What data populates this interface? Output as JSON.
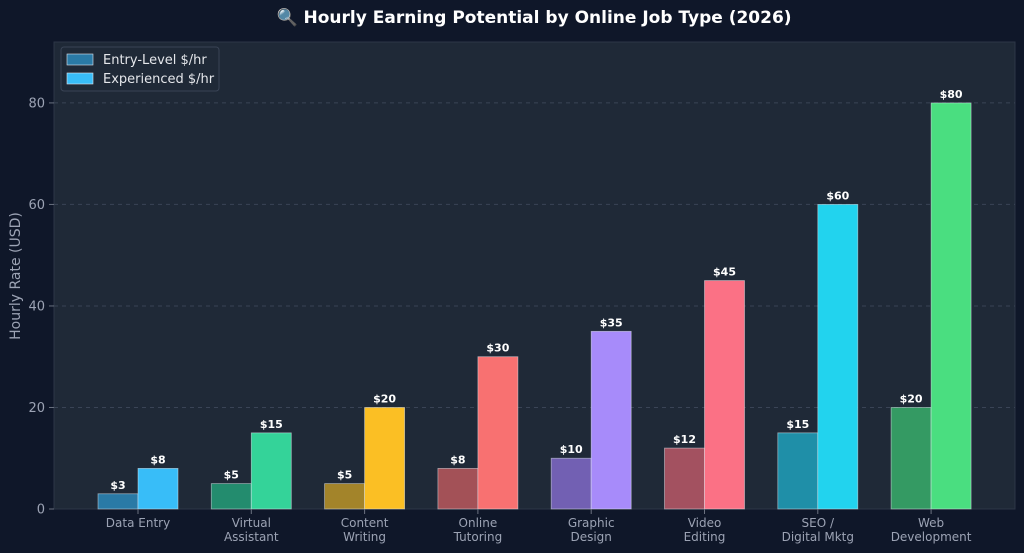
{
  "chart_data": {
    "type": "bar",
    "title": "🔍 Hourly Earning Potential by Online Job Type (2026)",
    "ylabel": "Hourly Rate (USD)",
    "xlabel": "",
    "ylim": [
      0,
      92
    ],
    "yticks": [
      0,
      20,
      40,
      60,
      80
    ],
    "grid": true,
    "legend_position": "top-left",
    "value_prefix": "$",
    "categories": [
      [
        "Data Entry"
      ],
      [
        "Virtual",
        "Assistant"
      ],
      [
        "Content",
        "Writing"
      ],
      [
        "Online",
        "Tutoring"
      ],
      [
        "Graphic",
        "Design"
      ],
      [
        "Video",
        "Editing"
      ],
      [
        "SEO /",
        "Digital Mktg"
      ],
      [
        "Web",
        "Development"
      ]
    ],
    "series": [
      {
        "name": "Entry-Level $/hr",
        "values": [
          3,
          5,
          5,
          8,
          10,
          12,
          15,
          20
        ]
      },
      {
        "name": "Experienced $/hr",
        "values": [
          8,
          15,
          20,
          30,
          35,
          45,
          60,
          80
        ]
      }
    ],
    "colors": {
      "experienced": [
        "#38bdf8",
        "#34d399",
        "#fbbf24",
        "#f87171",
        "#a78bfa",
        "#fb7185",
        "#22d3ee",
        "#4ade80"
      ],
      "entry": [
        "#2a7aa6",
        "#238c6e",
        "#a3842a",
        "#a35157",
        "#7260b3",
        "#a35160",
        "#1f8fa8",
        "#349a63"
      ],
      "legend": [
        "#2a7aa6",
        "#38bdf8"
      ],
      "plot_bg": "#1f2937",
      "page_bg": "#0f1729"
    }
  }
}
